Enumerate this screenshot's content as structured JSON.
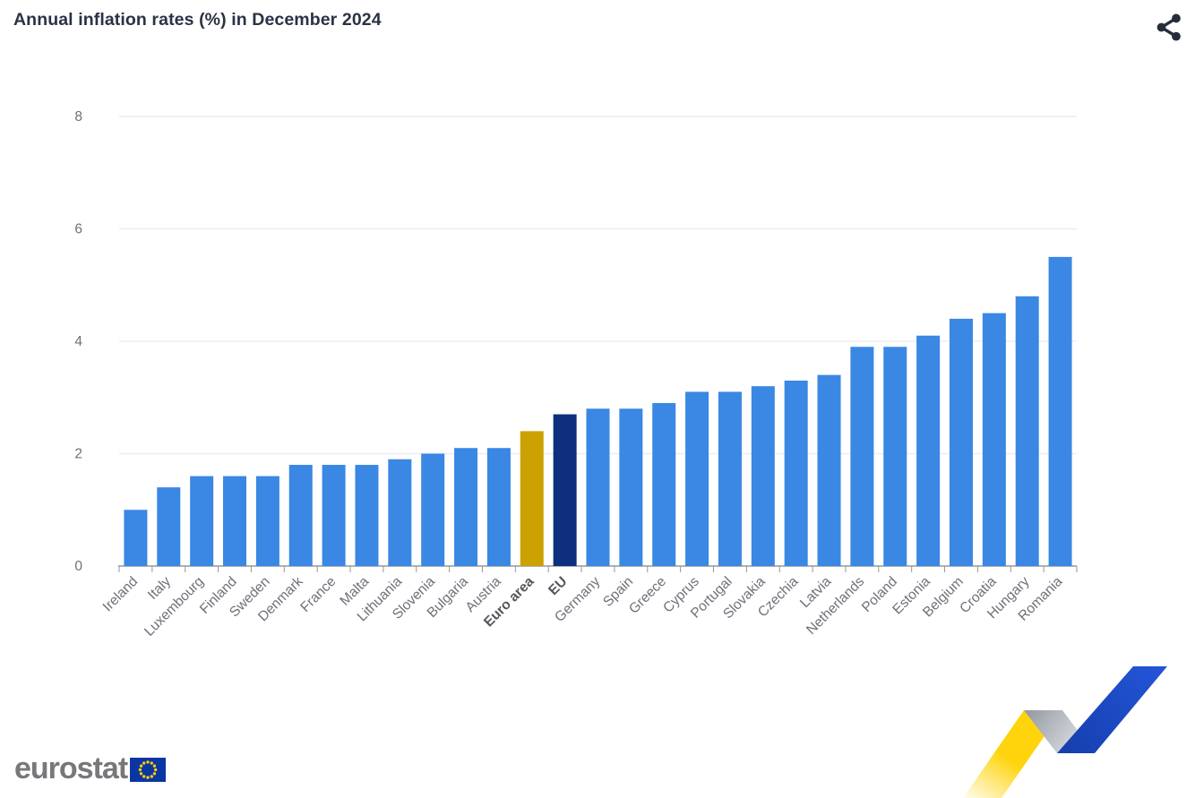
{
  "header": {
    "title": "Annual inflation rates (%) in December 2024"
  },
  "chart_data": {
    "type": "bar",
    "title": "Annual inflation rates (%) in December 2024",
    "xlabel": "",
    "ylabel": "",
    "ylim": [
      0,
      8
    ],
    "yticks": [
      0,
      2,
      4,
      6,
      8
    ],
    "grid": true,
    "legend": "none",
    "categories": [
      "Ireland",
      "Italy",
      "Luxembourg",
      "Finland",
      "Sweden",
      "Denmark",
      "France",
      "Malta",
      "Lithuania",
      "Slovenia",
      "Bulgaria",
      "Austria",
      "Euro area",
      "EU",
      "Germany",
      "Spain",
      "Greece",
      "Cyprus",
      "Portugal",
      "Slovakia",
      "Czechia",
      "Latvia",
      "Netherlands",
      "Poland",
      "Estonia",
      "Belgium",
      "Croatia",
      "Hungary",
      "Romania"
    ],
    "values": [
      1.0,
      1.4,
      1.6,
      1.6,
      1.6,
      1.8,
      1.8,
      1.8,
      1.9,
      2.0,
      2.1,
      2.1,
      2.4,
      2.7,
      2.8,
      2.8,
      2.9,
      3.1,
      3.1,
      3.2,
      3.3,
      3.4,
      3.9,
      3.9,
      4.1,
      4.4,
      4.5,
      4.8,
      5.5
    ],
    "bold_categories": [
      "Euro area",
      "EU"
    ],
    "colors": {
      "member_state": "#3A87E4",
      "euro_area": "#CBA202",
      "eu": "#0E2F7D"
    },
    "axis_color": "#94979C",
    "grid_color": "#E9EEF6",
    "label_color": "#6E7079",
    "bold_label_color": "#53565C"
  },
  "footer": {
    "logo_text": "eurostat"
  }
}
